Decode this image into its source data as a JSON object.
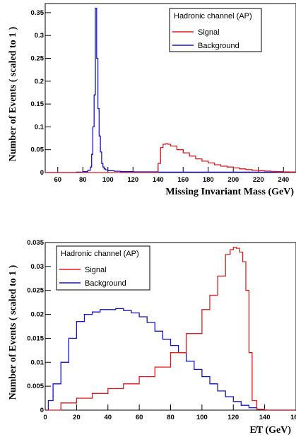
{
  "chart_data": [
    {
      "type": "line",
      "panel": "top",
      "xlabel": "Missing Invariant Mass (GeV)",
      "ylabel": "Number of Events ( scaled to 1 )",
      "xlim": [
        50,
        250
      ],
      "ylim": [
        0,
        0.37
      ],
      "xticks": [
        "60",
        "80",
        "100",
        "120",
        "140",
        "160",
        "180",
        "200",
        "220",
        "240"
      ],
      "yticks": [
        "0",
        "0.05",
        "0.1",
        "0.15",
        "0.2",
        "0.25",
        "0.3",
        "0.35"
      ],
      "legend": {
        "title": "Hadronic channel (AP)",
        "placement": "top-right",
        "entries": [
          "Signal",
          "Background"
        ]
      },
      "colors": {
        "signal": "#e31a1c",
        "background": "#1414c8"
      },
      "series": [
        {
          "name": "Signal",
          "x": [
            50,
            139,
            140,
            142,
            144,
            146,
            148,
            150,
            155,
            160,
            165,
            170,
            175,
            180,
            185,
            190,
            195,
            200,
            205,
            210,
            215,
            220,
            225,
            230,
            235,
            240,
            245,
            250
          ],
          "values": [
            0,
            0,
            0.02,
            0.055,
            0.062,
            0.063,
            0.062,
            0.058,
            0.05,
            0.043,
            0.036,
            0.03,
            0.025,
            0.021,
            0.017,
            0.014,
            0.012,
            0.01,
            0.008,
            0.0065,
            0.005,
            0.004,
            0.0032,
            0.0025,
            0.002,
            0.0015,
            0.0012,
            0.001
          ]
        },
        {
          "name": "Background",
          "x": [
            50,
            75,
            80,
            84,
            86,
            87,
            88,
            89,
            90,
            91,
            92,
            93,
            94,
            95,
            96,
            97,
            98,
            100,
            105,
            110,
            120,
            140,
            250
          ],
          "values": [
            0,
            0.001,
            0.002,
            0.005,
            0.012,
            0.04,
            0.1,
            0.17,
            0.36,
            0.25,
            0.14,
            0.08,
            0.045,
            0.02,
            0.012,
            0.008,
            0.006,
            0.004,
            0.003,
            0.002,
            0.0015,
            0.001,
            0
          ]
        }
      ]
    },
    {
      "type": "line",
      "panel": "bottom",
      "xlabel": "E̸T (GeV)",
      "ylabel": "Number of Events ( scaled to 1 )",
      "xlim": [
        0,
        160
      ],
      "ylim": [
        0,
        0.035
      ],
      "xticks": [
        "0",
        "20",
        "40",
        "60",
        "80",
        "100",
        "120",
        "140",
        "160"
      ],
      "yticks": [
        "0",
        "0.005",
        "0.01",
        "0.015",
        "0.02",
        "0.025",
        "0.03",
        "0.035"
      ],
      "legend": {
        "title": "Hadronic channel (AP)",
        "placement": "top-left",
        "entries": [
          "Signal",
          "Background"
        ]
      },
      "colors": {
        "signal": "#e31a1c",
        "background": "#1414c8"
      },
      "series": [
        {
          "name": "Signal",
          "x": [
            0,
            10,
            20,
            30,
            40,
            50,
            60,
            70,
            80,
            90,
            100,
            105,
            110,
            115,
            118,
            120,
            122,
            124,
            126,
            128,
            130,
            132,
            135,
            140,
            160
          ],
          "values": [
            0,
            0.0015,
            0.0025,
            0.0035,
            0.0045,
            0.0055,
            0.007,
            0.009,
            0.012,
            0.016,
            0.021,
            0.024,
            0.028,
            0.0325,
            0.0335,
            0.034,
            0.0338,
            0.033,
            0.031,
            0.025,
            0.012,
            0.002,
            0.0002,
            0,
            0
          ]
        },
        {
          "name": "Background",
          "x": [
            0,
            2,
            5,
            10,
            15,
            20,
            25,
            30,
            35,
            40,
            45,
            50,
            55,
            60,
            65,
            70,
            75,
            80,
            85,
            90,
            95,
            100,
            105,
            110,
            115,
            120,
            125,
            130,
            135,
            140,
            160
          ],
          "values": [
            0,
            0.002,
            0.0055,
            0.01,
            0.015,
            0.0185,
            0.02,
            0.0205,
            0.021,
            0.021,
            0.0212,
            0.0208,
            0.0203,
            0.0195,
            0.0183,
            0.0165,
            0.0148,
            0.0135,
            0.012,
            0.0102,
            0.0085,
            0.007,
            0.0055,
            0.004,
            0.0028,
            0.0018,
            0.001,
            0.0005,
            0.0002,
            0,
            0
          ]
        }
      ]
    }
  ]
}
